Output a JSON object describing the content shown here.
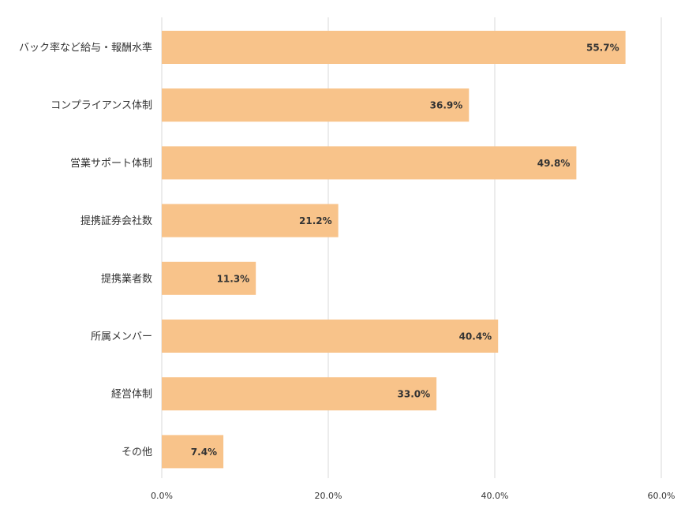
{
  "chart_data": {
    "type": "bar",
    "orientation": "horizontal",
    "categories": [
      "バック率など給与・報酬水準",
      "コンプライアンス体制",
      "営業サポート体制",
      "提携証券会社数",
      "提携業者数",
      "所属メンバー",
      "経営体制",
      "その他"
    ],
    "values": [
      55.7,
      36.9,
      49.8,
      21.2,
      11.3,
      40.4,
      33.0,
      7.4
    ],
    "data_labels": [
      "55.7%",
      "36.9%",
      "49.8%",
      "21.2%",
      "11.3%",
      "40.4%",
      "33.0%",
      "7.4%"
    ],
    "xlim": [
      0,
      60
    ],
    "x_ticks": [
      0,
      20,
      40,
      60
    ],
    "x_tick_labels": [
      "0.0%",
      "20.0%",
      "40.0%",
      "60.0%"
    ],
    "grid": "vertical",
    "title": "",
    "xlabel": "",
    "ylabel": "",
    "colors": {
      "bar": "#f8c38a",
      "grid": "#d9d9d9",
      "text": "#333333"
    }
  }
}
